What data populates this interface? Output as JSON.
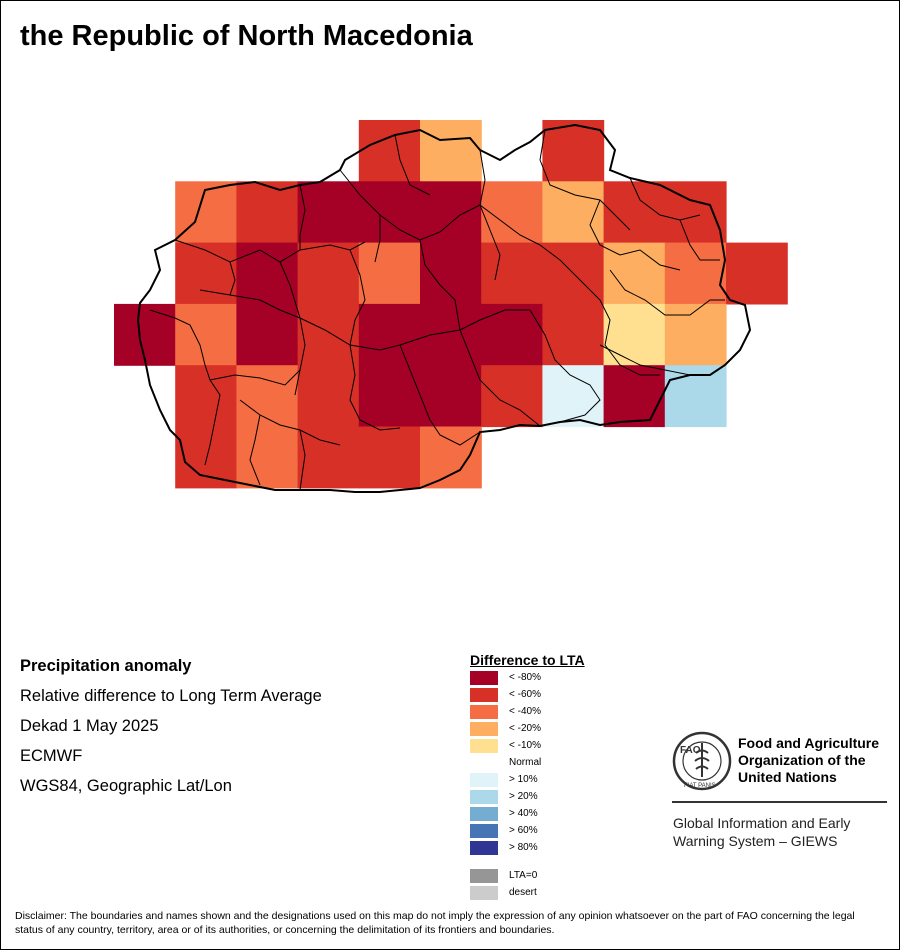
{
  "title": "the Republic of North Macedonia",
  "info": {
    "heading": "Precipitation anomaly",
    "line1": "Relative difference to Long Term Average",
    "line2": "Dekad 1 May 2025",
    "line3": "ECMWF",
    "line4": "WGS84, Geographic Lat/Lon"
  },
  "legend": {
    "title": "Difference to LTA",
    "items": [
      {
        "label": "< -80%",
        "color": "#a50026"
      },
      {
        "label": "< -60%",
        "color": "#d73027"
      },
      {
        "label": "< -40%",
        "color": "#f46d43"
      },
      {
        "label": "< -20%",
        "color": "#fdae61"
      },
      {
        "label": "< -10%",
        "color": "#fee090"
      },
      {
        "label": "Normal",
        "color": "#ffffff"
      },
      {
        "label": "> 10%",
        "color": "#e0f3f8"
      },
      {
        "label": "> 20%",
        "color": "#abd9e9"
      },
      {
        "label": "> 40%",
        "color": "#74add1"
      },
      {
        "label": "> 60%",
        "color": "#4575b4"
      },
      {
        "label": "> 80%",
        "color": "#313695"
      },
      {
        "label": "LTA=0",
        "color": "#969696"
      },
      {
        "label": "desert",
        "color": "#cccccc"
      }
    ]
  },
  "grid": {
    "rows": [
      [
        "",
        "",
        "",
        "",
        "<-60",
        "<-20",
        "",
        "<-60",
        "",
        "",
        "",
        ""
      ],
      [
        "",
        "<-40",
        "<-60",
        "<-80",
        "<-80",
        "<-80",
        "<-40",
        "<-20",
        "<-60",
        "<-60",
        "",
        ""
      ],
      [
        "",
        "<-60",
        "<-80",
        "<-60",
        "<-40",
        "<-80",
        "<-60",
        "<-60",
        "<-20",
        "<-40",
        "<-60",
        ""
      ],
      [
        "<-80",
        "<-40",
        "<-80",
        "<-60",
        "<-80",
        "<-80",
        "<-80",
        "<-60",
        "<-10",
        "<-20",
        "",
        ""
      ],
      [
        "",
        "<-60",
        "<-40",
        "<-60",
        "<-80",
        "<-80",
        "<-60",
        ">10",
        "<-80",
        ">20",
        "",
        ""
      ],
      [
        "",
        "<-60",
        "<-40",
        "<-60",
        "<-60",
        "<-40",
        "",
        "",
        "",
        "",
        "",
        ""
      ]
    ]
  },
  "fao": {
    "name_line1": "Food and Agriculture",
    "name_line2": "Organization of the",
    "name_line3": "United Nations",
    "giews_line1": "Global Information and Early",
    "giews_line2": "Warning System – GIEWS",
    "logo_text": "FAO",
    "motto": "FIAT PANIS"
  },
  "disclaimer": "Disclaimer: The boundaries and names shown and the designations used on this map do not imply the expression of any opinion whatsoever on the part of FAO concerning the legal status of any country, territory, area or of its authorities, or concerning the delimitation of its frontiers and boundaries."
}
